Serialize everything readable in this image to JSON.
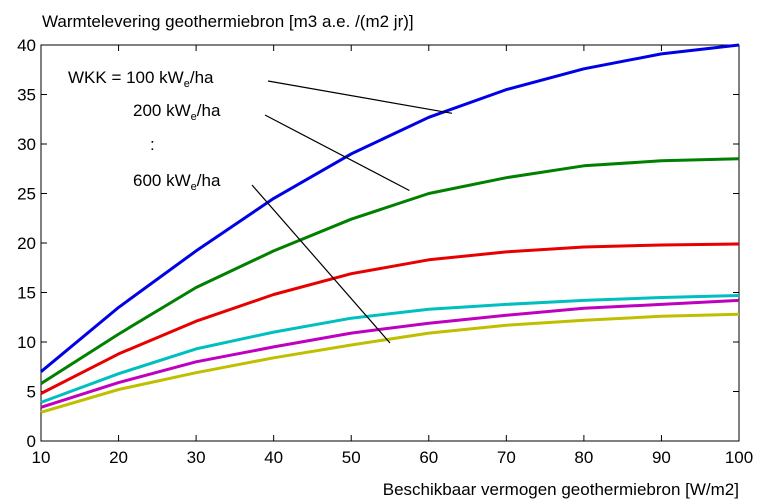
{
  "chart_data": {
    "type": "line",
    "title": "Warmtelevering geothermiebron [m3 a.e. /(m2 jr)]",
    "xlabel": "Beschikbaar vermogen geothermiebron [W/m2]",
    "ylabel": "",
    "xlim": [
      10,
      100
    ],
    "ylim": [
      0,
      40
    ],
    "x_ticks": [
      "10",
      "20",
      "30",
      "40",
      "50",
      "60",
      "70",
      "80",
      "90",
      "100"
    ],
    "y_ticks": [
      "0",
      "5",
      "10",
      "15",
      "20",
      "25",
      "30",
      "35",
      "40"
    ],
    "grid": false,
    "x": [
      10,
      20,
      30,
      40,
      50,
      60,
      70,
      80,
      90,
      100
    ],
    "series": [
      {
        "color": "#0000e6",
        "values": [
          7.0,
          13.5,
          19.2,
          24.5,
          29.0,
          32.7,
          35.5,
          37.6,
          39.1,
          40.0
        ]
      },
      {
        "color": "#008000",
        "values": [
          5.8,
          10.8,
          15.5,
          19.2,
          22.4,
          25.0,
          26.6,
          27.8,
          28.3,
          28.5
        ]
      },
      {
        "color": "#e60000",
        "values": [
          4.8,
          8.8,
          12.1,
          14.8,
          16.9,
          18.3,
          19.1,
          19.6,
          19.8,
          19.9
        ]
      },
      {
        "color": "#00bfbf",
        "values": [
          3.9,
          6.8,
          9.3,
          11.0,
          12.4,
          13.3,
          13.8,
          14.2,
          14.5,
          14.7
        ]
      },
      {
        "color": "#bf00bf",
        "values": [
          3.4,
          5.9,
          8.0,
          9.5,
          10.9,
          11.9,
          12.7,
          13.4,
          13.8,
          14.2
        ]
      },
      {
        "color": "#bfbf00",
        "values": [
          2.9,
          5.2,
          6.9,
          8.4,
          9.7,
          10.9,
          11.7,
          12.2,
          12.6,
          12.8
        ]
      }
    ],
    "annotations": [
      {
        "prefix": "WKK = 100 kW",
        "sub": "e",
        "suffix": "/ha",
        "arrow_to": [
          63,
          33.1
        ]
      },
      {
        "prefix": "200 kW",
        "sub": "e",
        "suffix": "/ha",
        "arrow_to": [
          57.5,
          25.3
        ]
      },
      {
        "prefix": ":",
        "sub": "",
        "suffix": ""
      },
      {
        "prefix": "600 kW",
        "sub": "e",
        "suffix": "/ha",
        "arrow_to": [
          55,
          9.9
        ]
      }
    ]
  }
}
